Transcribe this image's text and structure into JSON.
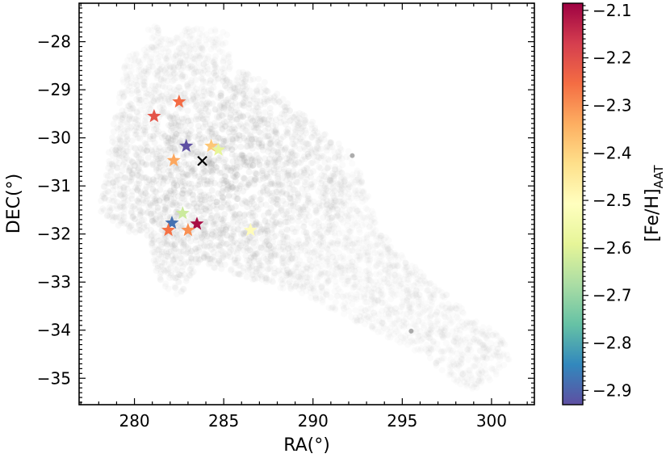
{
  "chart_data": {
    "type": "scatter",
    "xlabel": "RA(°)",
    "ylabel": "DEC(°)",
    "xlim": [
      276.9,
      302.4
    ],
    "ylim": [
      -35.55,
      -27.2
    ],
    "x_ticks": [
      280,
      285,
      290,
      295,
      300
    ],
    "x_tick_labels": [
      "280",
      "285",
      "290",
      "295",
      "300"
    ],
    "y_ticks": [
      -28,
      -29,
      -30,
      -31,
      -32,
      -33,
      -34,
      -35
    ],
    "y_tick_labels": [
      "−28",
      "−29",
      "−30",
      "−31",
      "−32",
      "−33",
      "−34",
      "−35"
    ],
    "colorbar": {
      "label": "[Fe/H]",
      "label_sub": "AAT",
      "range": [
        -2.93,
        -2.085
      ],
      "ticks": [
        -2.1,
        -2.2,
        -2.3,
        -2.4,
        -2.5,
        -2.6,
        -2.7,
        -2.8,
        -2.9
      ],
      "tick_labels": [
        "−2.1",
        "−2.2",
        "−2.3",
        "−2.4",
        "−2.5",
        "−2.6",
        "−2.7",
        "−2.8",
        "−2.9"
      ],
      "colormap": "Spectral"
    },
    "background_color": "#9a9a9a",
    "center_marker": {
      "x": 283.8,
      "y": -30.48,
      "symbol": "x",
      "color": "#000000"
    },
    "stars": [
      {
        "x": 281.1,
        "y": -29.55,
        "feh": -2.21
      },
      {
        "x": 282.5,
        "y": -29.25,
        "feh": -2.25
      },
      {
        "x": 282.9,
        "y": -30.17,
        "feh": -2.93
      },
      {
        "x": 282.2,
        "y": -30.47,
        "feh": -2.33
      },
      {
        "x": 284.3,
        "y": -30.17,
        "feh": -2.38
      },
      {
        "x": 284.7,
        "y": -30.25,
        "feh": -2.59
      },
      {
        "x": 282.7,
        "y": -31.57,
        "feh": -2.63
      },
      {
        "x": 282.1,
        "y": -31.77,
        "feh": -2.88
      },
      {
        "x": 283.5,
        "y": -31.79,
        "feh": -2.1
      },
      {
        "x": 281.9,
        "y": -31.92,
        "feh": -2.26
      },
      {
        "x": 283.0,
        "y": -31.92,
        "feh": -2.3
      },
      {
        "x": 286.5,
        "y": -31.92,
        "feh": -2.5
      }
    ]
  }
}
